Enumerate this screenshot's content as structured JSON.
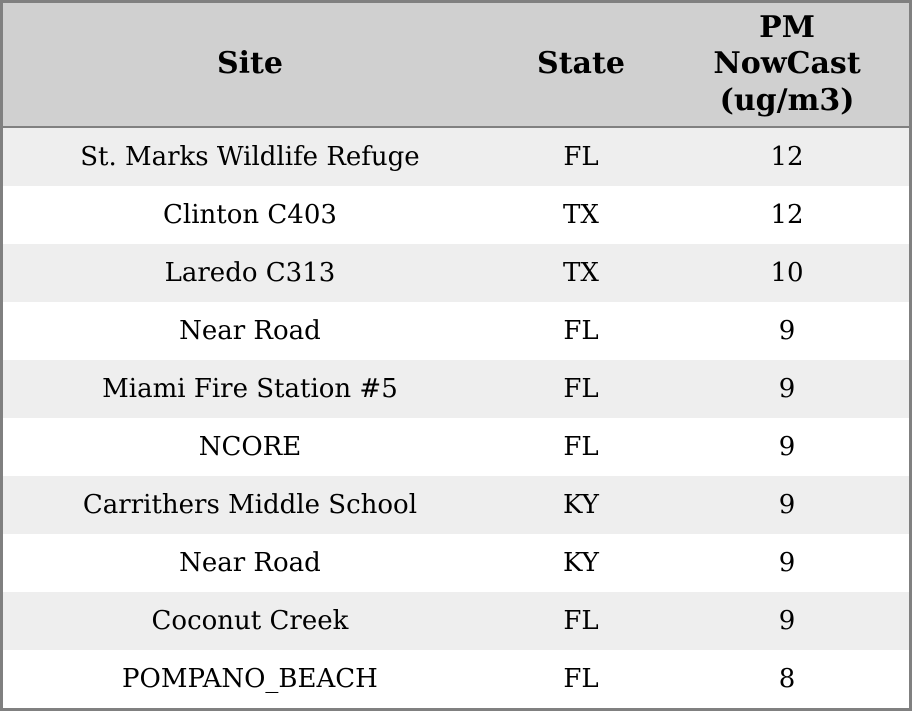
{
  "chart_data": {
    "type": "table",
    "title": "",
    "columns": [
      "Site",
      "State",
      "PM NowCast (ug/m3)"
    ],
    "rows": [
      [
        "St. Marks Wildlife Refuge",
        "FL",
        12
      ],
      [
        "Clinton C403",
        "TX",
        12
      ],
      [
        "Laredo C313",
        "TX",
        10
      ],
      [
        "Near Road",
        "FL",
        9
      ],
      [
        "Miami Fire Station #5",
        "FL",
        9
      ],
      [
        "NCORE",
        "FL",
        9
      ],
      [
        "Carrithers Middle School",
        "KY",
        9
      ],
      [
        "Near Road",
        "KY",
        9
      ],
      [
        "Coconut Creek",
        "FL",
        9
      ],
      [
        "POMPANO_BEACH",
        "FL",
        8
      ]
    ],
    "layout": {
      "header_position": "top",
      "row_striping": true,
      "grid": "outer-border-and-header-rule-only"
    }
  },
  "table": {
    "headers": {
      "site": "Site",
      "state": "State",
      "pm": "PM\nNowCast\n(ug/m3)"
    }
  },
  "colors": {
    "header_bg": "#d0d0d0",
    "row_odd_bg": "#eeeeee",
    "row_even_bg": "#ffffff",
    "border": "#808080",
    "text": "#000000"
  }
}
